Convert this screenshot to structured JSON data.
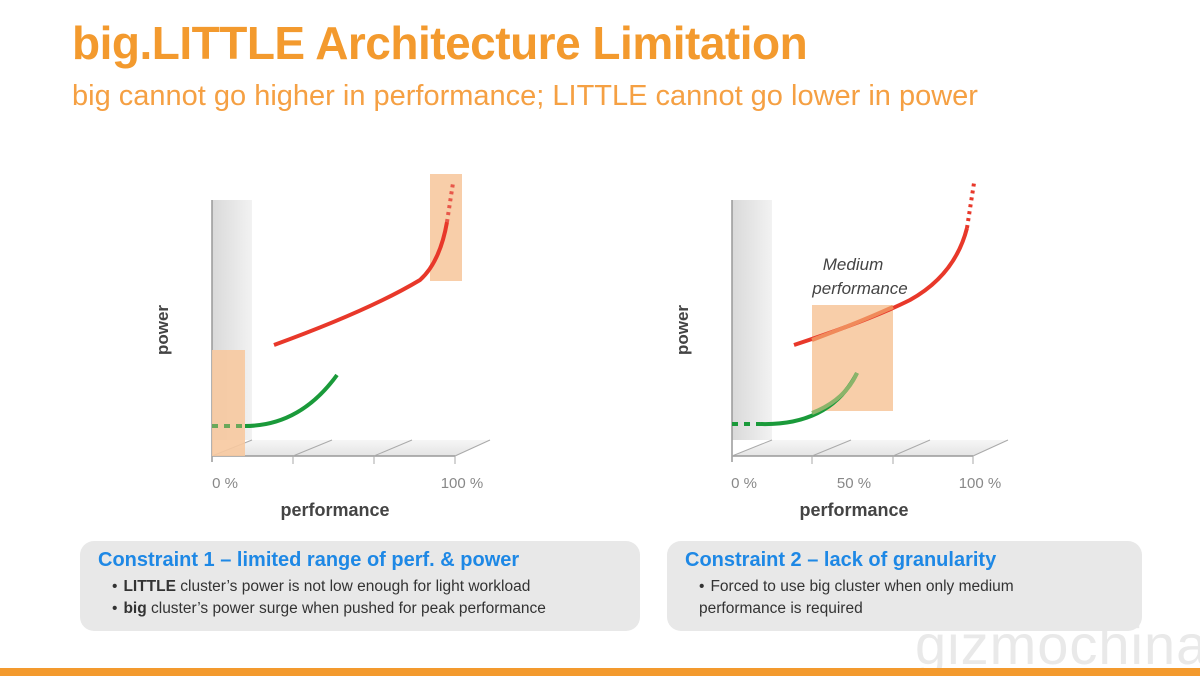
{
  "title": "big.LITTLE Architecture Limitation",
  "subtitle": "big cannot go higher in performance; LITTLE cannot go lower in power",
  "diagram1": {
    "y_label": "power",
    "x_label": "performance",
    "ticks": [
      "0 %",
      "100 %"
    ]
  },
  "diagram2": {
    "y_label": "power",
    "x_label": "performance",
    "ticks": [
      "0 %",
      "50 %",
      "100 %"
    ],
    "annotation_line1": "Medium",
    "annotation_line2": "performance"
  },
  "constraint1": {
    "heading": "Constraint 1 – limited range of perf. & power",
    "bullets": [
      {
        "bold": "LITTLE",
        "text": " cluster’s power is not low enough for light workload"
      },
      {
        "bold": "big",
        "text": " cluster’s power surge when pushed for peak performance"
      }
    ]
  },
  "constraint2": {
    "heading": "Constraint 2 – lack of granularity",
    "bullets": [
      {
        "text": "Forced to use big cluster when only medium performance is required"
      }
    ]
  },
  "watermark": "gizmochina",
  "colors": {
    "accent": "#f39a2e",
    "big_curve": "#e8382a",
    "little_curve": "#1a9a3a",
    "highlight": "#f7c9a0",
    "heading_blue": "#1e88e5"
  }
}
